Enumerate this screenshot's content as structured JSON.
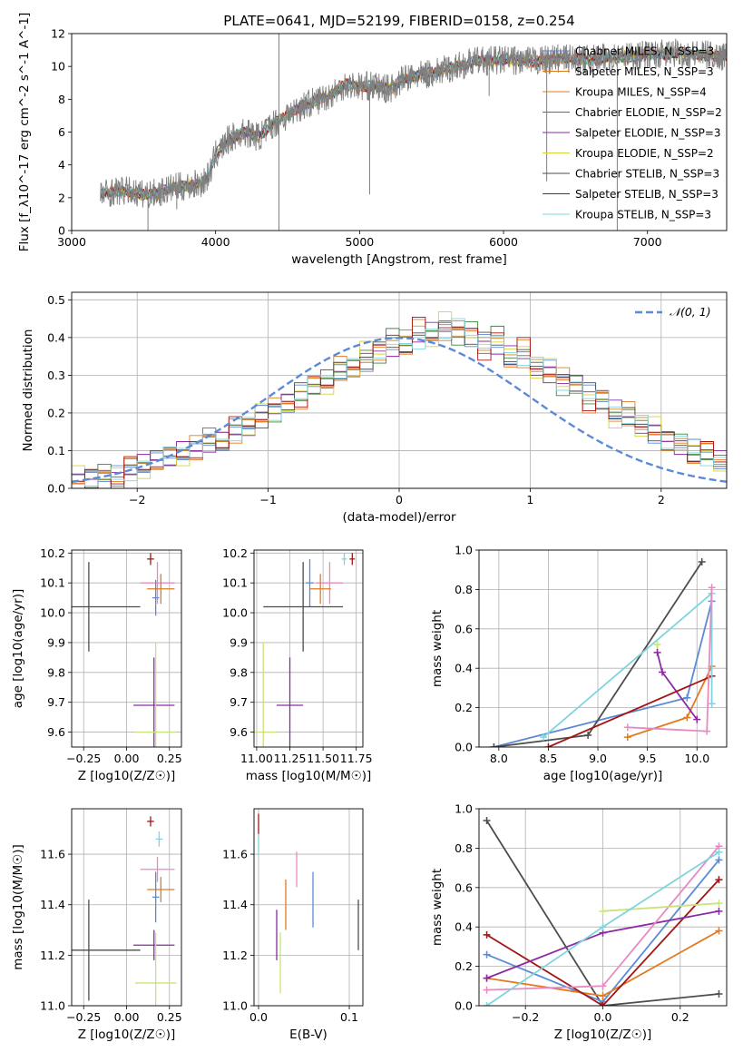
{
  "figure_title": "PLATE=0641, MJD=52199, FIBERID=0158, z=0.254",
  "model_colors": [
    "#5b8bd6",
    "#e07b22",
    "#e07b22",
    "#3d8a3d",
    "#8b2aa3",
    "#d6d23a",
    "#4d4d4d",
    "#a31515",
    "#7fd4e0"
  ],
  "chart_data": [
    {
      "id": "spectrum",
      "type": "line",
      "title": "PLATE=0641, MJD=52199, FIBERID=0158, z=0.254",
      "xlabel": "wavelength [Angstrom, rest frame]",
      "ylabel": "Flux [f_λ10^-17 erg cm^-2 s^-1 A^-1]",
      "xlim": [
        3000,
        7550
      ],
      "ylim": [
        0,
        12
      ],
      "xticks": [
        "3000",
        "4000",
        "5000",
        "6000",
        "7000"
      ],
      "yticks": [
        "0",
        "2",
        "4",
        "6",
        "8",
        "10",
        "12"
      ],
      "legend_position": "upper right",
      "legend": [
        {
          "label": "Chabner MILES, N_SSP=3",
          "color": "#5b8bd6"
        },
        {
          "label": "Salpeter MILES, N_SSP=3",
          "color": "#e07b22"
        },
        {
          "label": "Kroupa MILES, N_SSP=4",
          "color": "#e07b22"
        },
        {
          "label": "Chabrier ELODIE, N_SSP=2",
          "color": "#3d8a3d"
        },
        {
          "label": "Salpeter ELODIE, N_SSP=3",
          "color": "#8b2aa3"
        },
        {
          "label": "Kroupa ELODIE, N_SSP=2",
          "color": "#d6d23a"
        },
        {
          "label": "Chabrier STELIB, N_SSP=3",
          "color": "#4d4d4d"
        },
        {
          "label": "Salpeter STELIB, N_SSP=3",
          "color": "#a31515"
        },
        {
          "label": "Kroupa STELIB, N_SSP=3",
          "color": "#7fd4e0"
        }
      ],
      "continuum": [
        [
          3200,
          2.2
        ],
        [
          3300,
          2.4
        ],
        [
          3400,
          2.4
        ],
        [
          3500,
          2.2
        ],
        [
          3600,
          2.3
        ],
        [
          3700,
          2.6
        ],
        [
          3800,
          2.7
        ],
        [
          3900,
          2.9
        ],
        [
          3950,
          3.3
        ],
        [
          4000,
          4.6
        ],
        [
          4100,
          5.6
        ],
        [
          4200,
          6.0
        ],
        [
          4300,
          5.7
        ],
        [
          4400,
          6.5
        ],
        [
          4500,
          7.0
        ],
        [
          4600,
          7.6
        ],
        [
          4700,
          7.9
        ],
        [
          4800,
          8.3
        ],
        [
          4900,
          8.9
        ],
        [
          5000,
          8.8
        ],
        [
          5100,
          8.8
        ],
        [
          5200,
          8.6
        ],
        [
          5300,
          9.2
        ],
        [
          5400,
          9.4
        ],
        [
          5500,
          9.6
        ],
        [
          5600,
          9.8
        ],
        [
          5800,
          10.3
        ],
        [
          6000,
          10.4
        ],
        [
          6200,
          10.3
        ],
        [
          6400,
          10.5
        ],
        [
          6600,
          10.4
        ],
        [
          6800,
          10.6
        ],
        [
          7000,
          10.7
        ],
        [
          7200,
          10.8
        ],
        [
          7400,
          10.7
        ],
        [
          7550,
          10.6
        ]
      ],
      "spikes": [
        [
          4440,
          0
        ],
        [
          3530,
          0
        ],
        [
          3730,
          1.3
        ],
        [
          5070,
          2.2
        ],
        [
          6790,
          0
        ],
        [
          6300,
          3
        ],
        [
          5900,
          8.2
        ]
      ]
    },
    {
      "id": "residuals",
      "type": "histogram",
      "xlabel": "(data-model)/error",
      "ylabel": "Normed distribution",
      "xlim": [
        -2.5,
        2.5
      ],
      "ylim": [
        0,
        0.52
      ],
      "xticks": [
        "−2",
        "−1",
        "0",
        "1",
        "2"
      ],
      "yticks": [
        "0.0",
        "0.1",
        "0.2",
        "0.3",
        "0.4",
        "0.5"
      ],
      "legend_position": "upper right",
      "legend": [
        {
          "label": "𝒩(0, 1)",
          "color": "#5b8bd6",
          "style": "dashed"
        }
      ],
      "bin_width": 0.1,
      "bin_range": [
        -2.5,
        2.5
      ],
      "series_values": [
        [
          0.02,
          0.03,
          0.03,
          0.03,
          0.05,
          0.06,
          0.07,
          0.08,
          0.1,
          0.1,
          0.12,
          0.13,
          0.15,
          0.17,
          0.19,
          0.21,
          0.22,
          0.25,
          0.27,
          0.29,
          0.31,
          0.32,
          0.34,
          0.37,
          0.38,
          0.39,
          0.4,
          0.41,
          0.41,
          0.42,
          0.4,
          0.39,
          0.38,
          0.36,
          0.35,
          0.33,
          0.31,
          0.29,
          0.27,
          0.25,
          0.23,
          0.21,
          0.19,
          0.17,
          0.15,
          0.13,
          0.12,
          0.1,
          0.09,
          0.07
        ],
        [
          0.03,
          0.02,
          0.04,
          0.03,
          0.06,
          0.05,
          0.08,
          0.09,
          0.09,
          0.11,
          0.13,
          0.12,
          0.16,
          0.16,
          0.2,
          0.2,
          0.23,
          0.24,
          0.28,
          0.28,
          0.32,
          0.31,
          0.36,
          0.35,
          0.4,
          0.38,
          0.43,
          0.4,
          0.45,
          0.41,
          0.43,
          0.37,
          0.4,
          0.34,
          0.37,
          0.31,
          0.32,
          0.27,
          0.28,
          0.23,
          0.24,
          0.19,
          0.2,
          0.15,
          0.16,
          0.12,
          0.12,
          0.09,
          0.1,
          0.07
        ]
      ],
      "normal_mu": 0,
      "normal_sigma": 1
    },
    {
      "id": "age-vs-Z",
      "type": "errorbar",
      "xlabel": "Z [log10(Z/Z☉)]",
      "ylabel": "age [log10(age/yr)]",
      "xlim": [
        -0.32,
        0.32
      ],
      "ylim": [
        9.55,
        10.21
      ],
      "xticks": [
        "−0.25",
        "0.00",
        "0.25"
      ],
      "yticks": [
        "9.6",
        "9.7",
        "9.8",
        "9.9",
        "10.0",
        "10.1",
        "10.2"
      ],
      "points": [
        {
          "x": 0.18,
          "y": 10.1,
          "xerr": 0.1,
          "yerr": 0.07,
          "color": "#e88ac2"
        },
        {
          "x": 0.14,
          "y": 10.18,
          "xerr": 0.02,
          "yerr": 0.02,
          "color": "#a31515"
        },
        {
          "x": 0.2,
          "y": 10.08,
          "xerr": 0.08,
          "yerr": 0.05,
          "color": "#e07b22"
        },
        {
          "x": 0.17,
          "y": 10.05,
          "xerr": 0.02,
          "yerr": 0.06,
          "color": "#5b8bd6"
        },
        {
          "x": -0.22,
          "y": 10.02,
          "xerr": 0.3,
          "yerr": 0.15,
          "color": "#4d4d4d"
        },
        {
          "x": 0.16,
          "y": 9.69,
          "xerr": 0.12,
          "yerr": 0.16,
          "color": "#8b2aa3"
        },
        {
          "x": 0.17,
          "y": 9.6,
          "xerr": 0.12,
          "yerr": 0.3,
          "color": "#c8e37a"
        }
      ]
    },
    {
      "id": "age-vs-mass",
      "type": "errorbar",
      "xlabel": "mass [log10(M/M☉)]",
      "ylabel": "",
      "xlim": [
        10.98,
        11.8
      ],
      "ylim": [
        9.55,
        10.21
      ],
      "xticks": [
        "11.00",
        "11.25",
        "11.50",
        "11.75"
      ],
      "yticks": [
        "9.6",
        "9.7",
        "9.8",
        "9.9",
        "10.0",
        "10.1",
        "10.2"
      ],
      "points": [
        {
          "x": 11.72,
          "y": 10.18,
          "xerr": 0.02,
          "yerr": 0.02,
          "color": "#a31515"
        },
        {
          "x": 11.55,
          "y": 10.1,
          "xerr": 0.1,
          "yerr": 0.07,
          "color": "#e88ac2"
        },
        {
          "x": 11.66,
          "y": 10.18,
          "xerr": 0.02,
          "yerr": 0.02,
          "color": "#7fd4e0"
        },
        {
          "x": 11.48,
          "y": 10.08,
          "xerr": 0.08,
          "yerr": 0.05,
          "color": "#e07b22"
        },
        {
          "x": 11.4,
          "y": 10.1,
          "xerr": 0.03,
          "yerr": 0.08,
          "color": "#5b8bd6"
        },
        {
          "x": 11.35,
          "y": 10.02,
          "xerr": 0.3,
          "yerr": 0.15,
          "color": "#4d4d4d"
        },
        {
          "x": 11.25,
          "y": 9.69,
          "xerr": 0.1,
          "yerr": 0.16,
          "color": "#8b2aa3"
        },
        {
          "x": 11.05,
          "y": 9.6,
          "xerr": 0.1,
          "yerr": 0.3,
          "color": "#c8e37a"
        }
      ]
    },
    {
      "id": "mass-weight-vs-age",
      "type": "line",
      "xlabel": "age [log10(age/yr)]",
      "ylabel": "mass weight",
      "xlim": [
        7.8,
        10.3
      ],
      "ylim": [
        0,
        1.0
      ],
      "xticks": [
        "8.0",
        "8.5",
        "9.0",
        "9.5",
        "10.0"
      ],
      "yticks": [
        "0.0",
        "0.2",
        "0.4",
        "0.6",
        "0.8",
        "1.0"
      ],
      "series": [
        {
          "color": "#5b8bd6",
          "points": [
            [
              7.95,
              0.0
            ],
            [
              9.9,
              0.25
            ],
            [
              10.15,
              0.74
            ]
          ]
        },
        {
          "color": "#e07b22",
          "points": [
            [
              9.3,
              0.05
            ],
            [
              9.9,
              0.15
            ],
            [
              10.15,
              0.41
            ]
          ]
        },
        {
          "color": "#c8e37a",
          "points": [
            [
              9.6,
              0.52
            ],
            [
              9.6,
              0.48
            ]
          ]
        },
        {
          "color": "#8b2aa3",
          "points": [
            [
              9.6,
              0.48
            ],
            [
              9.65,
              0.38
            ],
            [
              10.0,
              0.14
            ]
          ]
        },
        {
          "color": "#4d4d4d",
          "points": [
            [
              7.95,
              0.0
            ],
            [
              8.9,
              0.06
            ],
            [
              10.05,
              0.94
            ]
          ]
        },
        {
          "color": "#a31515",
          "points": [
            [
              8.5,
              0.0
            ],
            [
              10.15,
              0.36
            ]
          ]
        },
        {
          "color": "#7fd4e0",
          "points": [
            [
              8.45,
              0.05
            ],
            [
              10.15,
              0.78
            ],
            [
              10.15,
              0.22
            ]
          ]
        },
        {
          "color": "#e88ac2",
          "points": [
            [
              9.3,
              0.1
            ],
            [
              10.1,
              0.08
            ],
            [
              10.15,
              0.81
            ]
          ]
        }
      ]
    },
    {
      "id": "mass-vs-Z",
      "type": "errorbar",
      "xlabel": "Z [log10(Z/Z☉)]",
      "ylabel": "mass [log10(M/M☉)]",
      "xlim": [
        -0.32,
        0.32
      ],
      "ylim": [
        11.0,
        11.78
      ],
      "xticks": [
        "−0.25",
        "0.00",
        "0.25"
      ],
      "yticks": [
        "11.0",
        "11.2",
        "11.4",
        "11.6"
      ],
      "points": [
        {
          "x": 0.14,
          "y": 11.73,
          "xerr": 0.02,
          "yerr": 0.02,
          "color": "#a31515"
        },
        {
          "x": 0.19,
          "y": 11.66,
          "xerr": 0.02,
          "yerr": 0.03,
          "color": "#7fd4e0"
        },
        {
          "x": 0.18,
          "y": 11.54,
          "xerr": 0.1,
          "yerr": 0.05,
          "color": "#e88ac2"
        },
        {
          "x": 0.2,
          "y": 11.46,
          "xerr": 0.08,
          "yerr": 0.05,
          "color": "#e07b22"
        },
        {
          "x": 0.17,
          "y": 11.43,
          "xerr": 0.02,
          "yerr": 0.1,
          "color": "#5b8bd6"
        },
        {
          "x": -0.22,
          "y": 11.22,
          "xerr": 0.3,
          "yerr": 0.2,
          "color": "#4d4d4d"
        },
        {
          "x": 0.16,
          "y": 11.24,
          "xerr": 0.12,
          "yerr": 0.06,
          "color": "#8b2aa3"
        },
        {
          "x": 0.17,
          "y": 11.09,
          "xerr": 0.12,
          "yerr": 0.2,
          "color": "#c8e37a"
        }
      ]
    },
    {
      "id": "mass-vs-ebv",
      "type": "errorbar",
      "xlabel": "E(B-V)",
      "ylabel": "",
      "xlim": [
        -0.005,
        0.115
      ],
      "ylim": [
        11.0,
        11.78
      ],
      "xticks": [
        "0.0",
        "0.1"
      ],
      "yticks": [
        "11.0",
        "11.2",
        "11.4",
        "11.6"
      ],
      "points": [
        {
          "x": 0.0,
          "y": 11.72,
          "xerr": 0.0,
          "yerr": 0.04,
          "color": "#a31515"
        },
        {
          "x": 0.0,
          "y": 11.64,
          "xerr": 0.0,
          "yerr": 0.04,
          "color": "#7fd4e0"
        },
        {
          "x": 0.042,
          "y": 11.54,
          "xerr": 0.0,
          "yerr": 0.07,
          "color": "#e88ac2"
        },
        {
          "x": 0.03,
          "y": 11.4,
          "xerr": 0.0,
          "yerr": 0.1,
          "color": "#e07b22"
        },
        {
          "x": 0.06,
          "y": 11.42,
          "xerr": 0.0,
          "yerr": 0.11,
          "color": "#5b8bd6"
        },
        {
          "x": 0.11,
          "y": 11.32,
          "xerr": 0.0,
          "yerr": 0.1,
          "color": "#4d4d4d"
        },
        {
          "x": 0.02,
          "y": 11.28,
          "xerr": 0.0,
          "yerr": 0.1,
          "color": "#8b2aa3"
        },
        {
          "x": 0.024,
          "y": 11.17,
          "xerr": 0.0,
          "yerr": 0.12,
          "color": "#c8e37a"
        }
      ]
    },
    {
      "id": "mass-weight-vs-Z",
      "type": "line",
      "xlabel": "Z [log10(Z/Z☉)]",
      "ylabel": "mass weight",
      "xlim": [
        -0.32,
        0.32
      ],
      "ylim": [
        0,
        1.0
      ],
      "xticks": [
        "−0.2",
        "0.0",
        "0.2"
      ],
      "yticks": [
        "0.0",
        "0.2",
        "0.4",
        "0.6",
        "0.8",
        "1.0"
      ],
      "series": [
        {
          "color": "#4d4d4d",
          "points": [
            [
              -0.3,
              0.94
            ],
            [
              0.0,
              0.0
            ],
            [
              0.3,
              0.06
            ]
          ]
        },
        {
          "color": "#5b8bd6",
          "points": [
            [
              -0.3,
              0.26
            ],
            [
              0.0,
              0.02
            ],
            [
              0.3,
              0.74
            ]
          ]
        },
        {
          "color": "#e07b22",
          "points": [
            [
              -0.3,
              0.14
            ],
            [
              0.0,
              0.05
            ],
            [
              0.3,
              0.38
            ]
          ]
        },
        {
          "color": "#a31515",
          "points": [
            [
              -0.3,
              0.36
            ],
            [
              0.0,
              0.0
            ],
            [
              0.3,
              0.64
            ]
          ]
        },
        {
          "color": "#8b2aa3",
          "points": [
            [
              -0.3,
              0.14
            ],
            [
              0.0,
              0.37
            ],
            [
              0.3,
              0.48
            ]
          ]
        },
        {
          "color": "#e88ac2",
          "points": [
            [
              -0.3,
              0.08
            ],
            [
              0.0,
              0.1
            ],
            [
              0.3,
              0.81
            ]
          ]
        },
        {
          "color": "#c8e37a",
          "points": [
            [
              0.0,
              0.48
            ],
            [
              0.3,
              0.52
            ]
          ]
        },
        {
          "color": "#7fd4e0",
          "points": [
            [
              -0.3,
              0.0
            ],
            [
              0.0,
              0.4
            ],
            [
              0.3,
              0.78
            ]
          ]
        }
      ]
    }
  ]
}
